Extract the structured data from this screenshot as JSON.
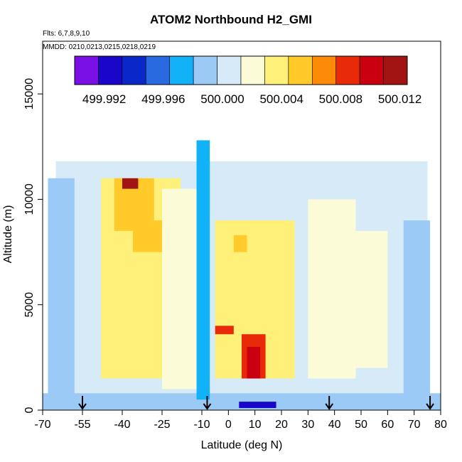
{
  "chart_data": {
    "type": "heatmap",
    "title": "ATOM2 Northbound H2_GMI",
    "flights_text": "Flts: 6,7,8,9,10",
    "dates_text": "MMDD: 0210,0213,0215,0218,0219",
    "xlabel": "Latitude (deg N)",
    "ylabel": "Altitude (m)",
    "xlim": [
      -70,
      80
    ],
    "ylim": [
      0,
      17500
    ],
    "x_tick_values": [
      -70,
      -55,
      -40,
      -25,
      -10,
      0,
      10,
      20,
      30,
      40,
      50,
      60,
      70,
      80
    ],
    "x_tick_labels": [
      "-70",
      "-55",
      "-40",
      "-25",
      "-10",
      "0",
      "10",
      "20",
      "30",
      "40",
      "50",
      "60",
      "70",
      "80"
    ],
    "y_tick_values": [
      0,
      5000,
      10000,
      15000
    ],
    "y_tick_labels": [
      "0",
      "5000",
      "10000",
      "15000"
    ],
    "colorbar": {
      "colors": [
        "#7a10e6",
        "#1a06c8",
        "#0a28c8",
        "#2a6ae0",
        "#12b2f8",
        "#9ccaf6",
        "#d6eaf8",
        "#fbfbd8",
        "#fff07a",
        "#ffca2a",
        "#fe8a0a",
        "#e82a08",
        "#ca0010",
        "#a21414"
      ],
      "tick_values": [
        499.992,
        499.996,
        500.0,
        500.004,
        500.008,
        500.012
      ],
      "tick_labels": [
        "499.992",
        "499.996",
        "500.000",
        "500.004",
        "500.008",
        "500.012"
      ],
      "range": [
        499.99,
        500.0125
      ]
    },
    "cells": [
      {
        "x0": -65,
        "x1": 75,
        "y0": 0,
        "y1": 11800,
        "v": 500.001
      },
      {
        "x0": -68,
        "x1": -55,
        "y0": 300,
        "y1": 11000,
        "v": 499.999
      },
      {
        "x0": -58,
        "x1": -50,
        "y0": 300,
        "y1": 11800,
        "v": 500.0005
      },
      {
        "x0": 66,
        "x1": 76,
        "y0": 300,
        "y1": 9000,
        "v": 499.999
      },
      {
        "x0": -70,
        "x1": 80,
        "y0": 0,
        "y1": 800,
        "v": 499.9995
      },
      {
        "x0": -48,
        "x1": -18,
        "y0": 1500,
        "y1": 11000,
        "v": 500.003
      },
      {
        "x0": -43,
        "x1": -28,
        "y0": 8500,
        "y1": 11000,
        "v": 500.006
      },
      {
        "x0": -40,
        "x1": -34,
        "y0": 10500,
        "y1": 11000,
        "v": 500.0115
      },
      {
        "x0": -36,
        "x1": -25,
        "y0": 7500,
        "y1": 9000,
        "v": 500.005
      },
      {
        "x0": -30,
        "x1": -20,
        "y0": 5000,
        "y1": 7000,
        "v": 500.003
      },
      {
        "x0": -12,
        "x1": -7,
        "y0": 500,
        "y1": 12800,
        "v": 499.998
      },
      {
        "x0": -5,
        "x1": 25,
        "y0": 1500,
        "y1": 9000,
        "v": 500.003
      },
      {
        "x0": -5,
        "x1": 2,
        "y0": 3600,
        "y1": 4000,
        "v": 500.008
      },
      {
        "x0": 5,
        "x1": 14,
        "y0": 1500,
        "y1": 3600,
        "v": 500.0085
      },
      {
        "x0": 7,
        "x1": 12,
        "y0": 1500,
        "y1": 3000,
        "v": 500.0105
      },
      {
        "x0": 0,
        "x1": 5,
        "y0": 5000,
        "y1": 6000,
        "v": 500.004
      },
      {
        "x0": 2,
        "x1": 7,
        "y0": 7500,
        "y1": 8300,
        "v": 500.005
      },
      {
        "x0": 15,
        "x1": 20,
        "y0": 7000,
        "y1": 8000,
        "v": 500.004
      },
      {
        "x0": 4,
        "x1": 18,
        "y0": 100,
        "y1": 400,
        "v": 499.993
      },
      {
        "x0": 48,
        "x1": 60,
        "y0": 2000,
        "y1": 8500,
        "v": 500.0025
      },
      {
        "x0": 30,
        "x1": 48,
        "y0": 1500,
        "y1": 10000,
        "v": 500.0015
      },
      {
        "x0": -25,
        "x1": -12,
        "y0": 1000,
        "y1": 10500,
        "v": 500.0015
      }
    ],
    "arrows": [
      -55,
      -8,
      38,
      76
    ]
  }
}
